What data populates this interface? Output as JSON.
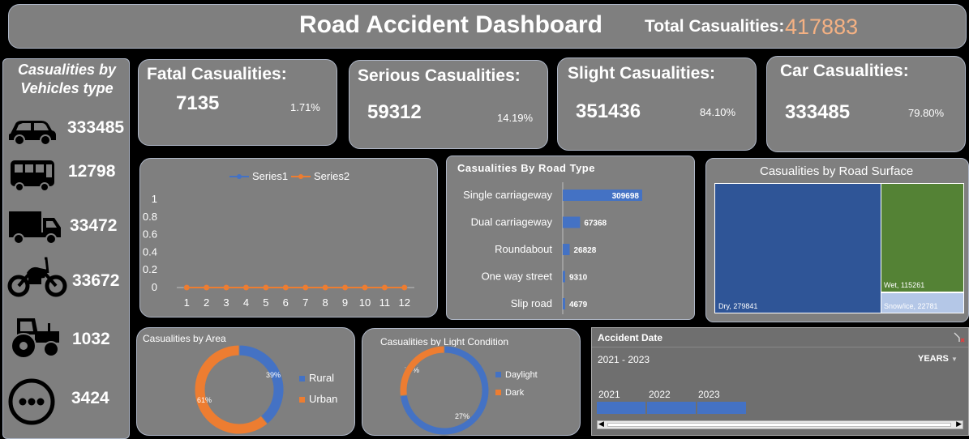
{
  "header": {
    "title": "Road Accident Dashboard",
    "total_label": "Total Casualities:",
    "total_value": "417883"
  },
  "vehicles": {
    "title_line1": "Casualities by",
    "title_line2": "Vehicles type",
    "items": [
      {
        "icon": "car-icon",
        "value": "333485"
      },
      {
        "icon": "bus-icon",
        "value": "12798"
      },
      {
        "icon": "truck-icon",
        "value": "33472"
      },
      {
        "icon": "motorcycle-icon",
        "value": "33672"
      },
      {
        "icon": "tractor-icon",
        "value": "1032"
      },
      {
        "icon": "other-icon",
        "value": "3424"
      }
    ]
  },
  "kpis": [
    {
      "label": "Fatal Casualities:",
      "value": "7135",
      "pct": "1.71%"
    },
    {
      "label": "Serious Casualities:",
      "value": "59312",
      "pct": "14.19%"
    },
    {
      "label": "Slight Casualities:",
      "value": "351436",
      "pct": "84.10%"
    },
    {
      "label": "Car Casualities:",
      "value": "333485",
      "pct": "79.80%"
    }
  ],
  "colors": {
    "panel": "#7f7f7f",
    "blue": "#4472c4",
    "orange": "#ed7d31",
    "green": "#548235",
    "dark_blue": "#2f5597",
    "light_blue": "#b4c7e7",
    "accent_total": "#f4b183"
  },
  "chart_data": [
    {
      "type": "line",
      "title": "",
      "x": [
        1,
        2,
        3,
        4,
        5,
        6,
        7,
        8,
        9,
        10,
        11,
        12
      ],
      "series": [
        {
          "name": "Series1",
          "values": [
            0,
            0,
            0,
            0,
            0,
            0,
            0,
            0,
            0,
            0,
            0,
            0
          ]
        },
        {
          "name": "Series2",
          "values": [
            0,
            0,
            0,
            0,
            0,
            0,
            0,
            0,
            0,
            0,
            0,
            0
          ]
        }
      ],
      "ylim": [
        0,
        1
      ],
      "yticks": [
        "0",
        "0.2",
        "0.4",
        "0.6",
        "0.8",
        "1"
      ],
      "legend": "top"
    },
    {
      "type": "bar",
      "orientation": "horizontal",
      "title": "Casualities By Road Type",
      "categories": [
        "Single carriageway",
        "Dual carriageway",
        "Roundabout",
        "One way street",
        "Slip road"
      ],
      "values": [
        309698,
        67368,
        26828,
        9310,
        4679
      ]
    },
    {
      "type": "treemap",
      "title": "Casualities by Road Surface",
      "labels": [
        "Dry, 279841",
        "Wet, 115261",
        "Snow/ice, 22781"
      ],
      "values": [
        279841,
        115261,
        22781
      ]
    },
    {
      "type": "pie",
      "subtype": "donut",
      "title": "Casualities by Area",
      "categories": [
        "Rural",
        "Urban"
      ],
      "values": [
        39,
        61
      ],
      "labels": [
        "39%",
        "61%"
      ],
      "legend": "right"
    },
    {
      "type": "pie",
      "subtype": "donut",
      "title": "Casualities by Light Condition",
      "categories": [
        "Daylight",
        "Dark"
      ],
      "values": [
        73,
        27
      ],
      "labels": [
        "73%",
        "27%"
      ],
      "legend": "right"
    }
  ],
  "timeline": {
    "title": "Accident Date",
    "range": "2021 - 2023",
    "unit": "YEARS",
    "years": [
      "2021",
      "2022",
      "2023"
    ]
  }
}
